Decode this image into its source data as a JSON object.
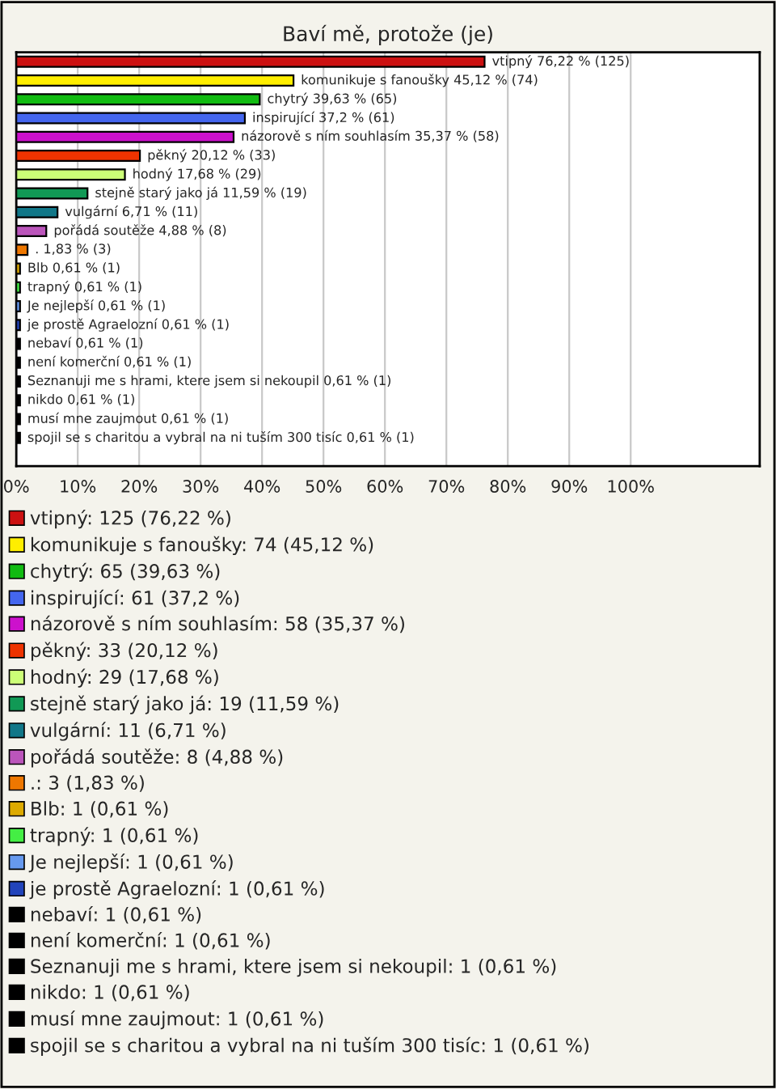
{
  "chart_data": {
    "type": "bar",
    "orientation": "horizontal",
    "title": "Baví mě, protože (je)",
    "categories": [
      null,
      null,
      null,
      null,
      null,
      null,
      null,
      null,
      null,
      null,
      null,
      null,
      null,
      null,
      null,
      null,
      null,
      null,
      null,
      null,
      null,
      null
    ],
    "xlim": [
      0,
      121
    ],
    "xticks": [
      {
        "value": 0,
        "label": "0%"
      },
      {
        "value": 10,
        "label": "10%"
      },
      {
        "value": 20,
        "label": "20%"
      },
      {
        "value": 30,
        "label": "30%"
      },
      {
        "value": 40,
        "label": "40%"
      },
      {
        "value": 50,
        "label": "50%"
      },
      {
        "value": 60,
        "label": "60%"
      },
      {
        "value": 70,
        "label": "70%"
      },
      {
        "value": 80,
        "label": "80%"
      },
      {
        "value": 90,
        "label": "90%"
      },
      {
        "value": 100,
        "label": "100%"
      }
    ],
    "grid": "x",
    "legend": "bottom",
    "series": [
      {
        "name": "vtipný: 125 (76,22 %)",
        "color": "#cc1111",
        "values": [
          76.22,
          null,
          null,
          null,
          null,
          null,
          null,
          null,
          null,
          null,
          null,
          null,
          null,
          null,
          null,
          null,
          null,
          null,
          null,
          null,
          null,
          null
        ],
        "value_labels": [
          "vtipný 76,22 % (125)",
          null,
          null,
          null,
          null,
          null,
          null,
          null,
          null,
          null,
          null,
          null,
          null,
          null,
          null,
          null,
          null,
          null,
          null,
          null,
          null,
          null
        ]
      },
      {
        "name": "komunikuje s fanoušky: 74 (45,12 %)",
        "color": "#ffee00",
        "values": [
          null,
          45.12,
          null,
          null,
          null,
          null,
          null,
          null,
          null,
          null,
          null,
          null,
          null,
          null,
          null,
          null,
          null,
          null,
          null,
          null,
          null,
          null
        ],
        "value_labels": [
          null,
          "komunikuje s fanoušky 45,12 % (74)",
          null,
          null,
          null,
          null,
          null,
          null,
          null,
          null,
          null,
          null,
          null,
          null,
          null,
          null,
          null,
          null,
          null,
          null,
          null,
          null
        ]
      },
      {
        "name": "chytrý: 65 (39,63 %)",
        "color": "#11bb11",
        "values": [
          null,
          null,
          39.63,
          null,
          null,
          null,
          null,
          null,
          null,
          null,
          null,
          null,
          null,
          null,
          null,
          null,
          null,
          null,
          null,
          null,
          null,
          null
        ],
        "value_labels": [
          null,
          null,
          "chytrý 39,63 % (65)",
          null,
          null,
          null,
          null,
          null,
          null,
          null,
          null,
          null,
          null,
          null,
          null,
          null,
          null,
          null,
          null,
          null,
          null,
          null
        ]
      },
      {
        "name": "inspirující: 61 (37,2 %)",
        "color": "#4466ee",
        "values": [
          null,
          null,
          null,
          37.2,
          null,
          null,
          null,
          null,
          null,
          null,
          null,
          null,
          null,
          null,
          null,
          null,
          null,
          null,
          null,
          null,
          null,
          null
        ],
        "value_labels": [
          null,
          null,
          null,
          "inspirující 37,2 % (61)",
          null,
          null,
          null,
          null,
          null,
          null,
          null,
          null,
          null,
          null,
          null,
          null,
          null,
          null,
          null,
          null,
          null,
          null
        ]
      },
      {
        "name": "názorově s ním souhlasím: 58 (35,37 %)",
        "color": "#cc11cc",
        "values": [
          null,
          null,
          null,
          null,
          35.37,
          null,
          null,
          null,
          null,
          null,
          null,
          null,
          null,
          null,
          null,
          null,
          null,
          null,
          null,
          null,
          null,
          null
        ],
        "value_labels": [
          null,
          null,
          null,
          null,
          "názorově s ním souhlasím 35,37 % (58)",
          null,
          null,
          null,
          null,
          null,
          null,
          null,
          null,
          null,
          null,
          null,
          null,
          null,
          null,
          null,
          null,
          null
        ]
      },
      {
        "name": "pěkný: 33 (20,12 %)",
        "color": "#ee3300",
        "values": [
          null,
          null,
          null,
          null,
          null,
          20.12,
          null,
          null,
          null,
          null,
          null,
          null,
          null,
          null,
          null,
          null,
          null,
          null,
          null,
          null,
          null,
          null
        ],
        "value_labels": [
          null,
          null,
          null,
          null,
          null,
          "pěkný 20,12 % (33)",
          null,
          null,
          null,
          null,
          null,
          null,
          null,
          null,
          null,
          null,
          null,
          null,
          null,
          null,
          null,
          null
        ]
      },
      {
        "name": "hodný: 29 (17,68 %)",
        "color": "#ccff77",
        "values": [
          null,
          null,
          null,
          null,
          null,
          null,
          17.68,
          null,
          null,
          null,
          null,
          null,
          null,
          null,
          null,
          null,
          null,
          null,
          null,
          null,
          null,
          null
        ],
        "value_labels": [
          null,
          null,
          null,
          null,
          null,
          null,
          "hodný 17,68 % (29)",
          null,
          null,
          null,
          null,
          null,
          null,
          null,
          null,
          null,
          null,
          null,
          null,
          null,
          null,
          null
        ]
      },
      {
        "name": "stejně starý jako já: 19 (11,59 %)",
        "color": "#119955",
        "values": [
          null,
          null,
          null,
          null,
          null,
          null,
          null,
          11.59,
          null,
          null,
          null,
          null,
          null,
          null,
          null,
          null,
          null,
          null,
          null,
          null,
          null,
          null
        ],
        "value_labels": [
          null,
          null,
          null,
          null,
          null,
          null,
          null,
          "stejně starý jako já 11,59 % (19)",
          null,
          null,
          null,
          null,
          null,
          null,
          null,
          null,
          null,
          null,
          null,
          null,
          null,
          null
        ]
      },
      {
        "name": "vulgární: 11 (6,71 %)",
        "color": "#117788",
        "values": [
          null,
          null,
          null,
          null,
          null,
          null,
          null,
          null,
          6.71,
          null,
          null,
          null,
          null,
          null,
          null,
          null,
          null,
          null,
          null,
          null,
          null,
          null
        ],
        "value_labels": [
          null,
          null,
          null,
          null,
          null,
          null,
          null,
          null,
          "vulgární 6,71 % (11)",
          null,
          null,
          null,
          null,
          null,
          null,
          null,
          null,
          null,
          null,
          null,
          null,
          null
        ]
      },
      {
        "name": "pořádá soutěže: 8 (4,88 %)",
        "color": "#bb55bb",
        "values": [
          null,
          null,
          null,
          null,
          null,
          null,
          null,
          null,
          null,
          4.88,
          null,
          null,
          null,
          null,
          null,
          null,
          null,
          null,
          null,
          null,
          null,
          null
        ],
        "value_labels": [
          null,
          null,
          null,
          null,
          null,
          null,
          null,
          null,
          null,
          "pořádá soutěže 4,88 % (8)",
          null,
          null,
          null,
          null,
          null,
          null,
          null,
          null,
          null,
          null,
          null,
          null
        ]
      },
      {
        "name": ".: 3 (1,83 %)",
        "color": "#ee7700",
        "values": [
          null,
          null,
          null,
          null,
          null,
          null,
          null,
          null,
          null,
          null,
          1.83,
          null,
          null,
          null,
          null,
          null,
          null,
          null,
          null,
          null,
          null,
          null
        ],
        "value_labels": [
          null,
          null,
          null,
          null,
          null,
          null,
          null,
          null,
          null,
          null,
          ". 1,83 % (3)",
          null,
          null,
          null,
          null,
          null,
          null,
          null,
          null,
          null,
          null,
          null
        ]
      },
      {
        "name": "Blb: 1 (0,61 %)",
        "color": "#ddaa00",
        "values": [
          null,
          null,
          null,
          null,
          null,
          null,
          null,
          null,
          null,
          null,
          null,
          0.61,
          null,
          null,
          null,
          null,
          null,
          null,
          null,
          null,
          null,
          null
        ],
        "value_labels": [
          null,
          null,
          null,
          null,
          null,
          null,
          null,
          null,
          null,
          null,
          null,
          "Blb 0,61 % (1)",
          null,
          null,
          null,
          null,
          null,
          null,
          null,
          null,
          null,
          null
        ]
      },
      {
        "name": "trapný: 1 (0,61 %)",
        "color": "#44ee44",
        "values": [
          null,
          null,
          null,
          null,
          null,
          null,
          null,
          null,
          null,
          null,
          null,
          null,
          0.61,
          null,
          null,
          null,
          null,
          null,
          null,
          null,
          null,
          null
        ],
        "value_labels": [
          null,
          null,
          null,
          null,
          null,
          null,
          null,
          null,
          null,
          null,
          null,
          null,
          "trapný 0,61 % (1)",
          null,
          null,
          null,
          null,
          null,
          null,
          null,
          null,
          null
        ]
      },
      {
        "name": "Je nejlepší: 1 (0,61 %)",
        "color": "#6699ee",
        "values": [
          null,
          null,
          null,
          null,
          null,
          null,
          null,
          null,
          null,
          null,
          null,
          null,
          null,
          0.61,
          null,
          null,
          null,
          null,
          null,
          null,
          null,
          null
        ],
        "value_labels": [
          null,
          null,
          null,
          null,
          null,
          null,
          null,
          null,
          null,
          null,
          null,
          null,
          null,
          "Je nejlepší 0,61 % (1)",
          null,
          null,
          null,
          null,
          null,
          null,
          null,
          null
        ]
      },
      {
        "name": "je prostě Agraelozní: 1 (0,61 %)",
        "color": "#2244bb",
        "values": [
          null,
          null,
          null,
          null,
          null,
          null,
          null,
          null,
          null,
          null,
          null,
          null,
          null,
          null,
          0.61,
          null,
          null,
          null,
          null,
          null,
          null,
          null
        ],
        "value_labels": [
          null,
          null,
          null,
          null,
          null,
          null,
          null,
          null,
          null,
          null,
          null,
          null,
          null,
          null,
          "je prostě Agraelozní 0,61 % (1)",
          null,
          null,
          null,
          null,
          null,
          null,
          null
        ]
      },
      {
        "name": "nebaví: 1 (0,61 %)",
        "color": "#000000",
        "values": [
          null,
          null,
          null,
          null,
          null,
          null,
          null,
          null,
          null,
          null,
          null,
          null,
          null,
          null,
          null,
          0.61,
          null,
          null,
          null,
          null,
          null,
          null
        ],
        "value_labels": [
          null,
          null,
          null,
          null,
          null,
          null,
          null,
          null,
          null,
          null,
          null,
          null,
          null,
          null,
          null,
          "nebaví 0,61 % (1)",
          null,
          null,
          null,
          null,
          null,
          null
        ]
      },
      {
        "name": "není komerční: 1 (0,61 %)",
        "color": "#000000",
        "values": [
          null,
          null,
          null,
          null,
          null,
          null,
          null,
          null,
          null,
          null,
          null,
          null,
          null,
          null,
          null,
          null,
          0.61,
          null,
          null,
          null,
          null,
          null
        ],
        "value_labels": [
          null,
          null,
          null,
          null,
          null,
          null,
          null,
          null,
          null,
          null,
          null,
          null,
          null,
          null,
          null,
          null,
          "není komerční 0,61 % (1)",
          null,
          null,
          null,
          null,
          null
        ]
      },
      {
        "name": "Seznanuji me s hrami, ktere jsem si nekoupil: 1 (0,61 %)",
        "color": "#000000",
        "values": [
          null,
          null,
          null,
          null,
          null,
          null,
          null,
          null,
          null,
          null,
          null,
          null,
          null,
          null,
          null,
          null,
          null,
          0.61,
          null,
          null,
          null,
          null
        ],
        "value_labels": [
          null,
          null,
          null,
          null,
          null,
          null,
          null,
          null,
          null,
          null,
          null,
          null,
          null,
          null,
          null,
          null,
          null,
          "Seznanuji me s hrami, ktere jsem si nekoupil 0,61 % (1)",
          null,
          null,
          null,
          null
        ]
      },
      {
        "name": "nikdo: 1 (0,61 %)",
        "color": "#000000",
        "values": [
          null,
          null,
          null,
          null,
          null,
          null,
          null,
          null,
          null,
          null,
          null,
          null,
          null,
          null,
          null,
          null,
          null,
          null,
          0.61,
          null,
          null,
          null
        ],
        "value_labels": [
          null,
          null,
          null,
          null,
          null,
          null,
          null,
          null,
          null,
          null,
          null,
          null,
          null,
          null,
          null,
          null,
          null,
          null,
          "nikdo 0,61 % (1)",
          null,
          null,
          null
        ]
      },
      {
        "name": "musí mne zaujmout: 1 (0,61 %)",
        "color": "#000000",
        "values": [
          null,
          null,
          null,
          null,
          null,
          null,
          null,
          null,
          null,
          null,
          null,
          null,
          null,
          null,
          null,
          null,
          null,
          null,
          null,
          0.61,
          null,
          null
        ],
        "value_labels": [
          null,
          null,
          null,
          null,
          null,
          null,
          null,
          null,
          null,
          null,
          null,
          null,
          null,
          null,
          null,
          null,
          null,
          null,
          null,
          "musí mne zaujmout 0,61 % (1)",
          null,
          null
        ]
      },
      {
        "name": "spojil se s charitou a vybral na ni tuším 300 tisíc: 1 (0,61 %)",
        "color": "#000000",
        "values": [
          null,
          null,
          null,
          null,
          null,
          null,
          null,
          null,
          null,
          null,
          null,
          null,
          null,
          null,
          null,
          null,
          null,
          null,
          null,
          null,
          0.61,
          null
        ],
        "value_labels": [
          null,
          null,
          null,
          null,
          null,
          null,
          null,
          null,
          null,
          null,
          null,
          null,
          null,
          null,
          null,
          null,
          null,
          null,
          null,
          null,
          "spojil se s charitou a vybral na ni tuším 300 tisíc 0,61 % (1)",
          null
        ]
      }
    ]
  }
}
